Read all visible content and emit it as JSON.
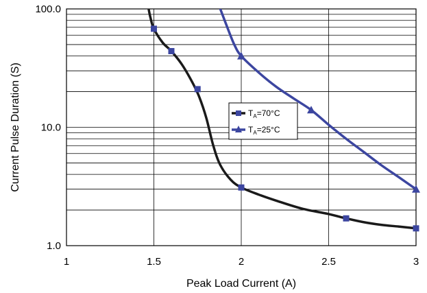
{
  "chart_data": {
    "type": "line",
    "xlabel": "Peak Load Current (A)",
    "ylabel": "Current Pulse Duration (S)",
    "xlim": [
      1,
      3
    ],
    "ylim": [
      1,
      100
    ],
    "y_scale": "log",
    "grid": true,
    "x_ticks": [
      "1",
      "1.5",
      "2",
      "2.5",
      "3"
    ],
    "y_ticks": [
      "1.0",
      "10.0",
      "100.0"
    ],
    "legend_placement": "center-right",
    "series": [
      {
        "name_main": "T",
        "name_sub": "A",
        "name_rest": "=70°C",
        "color": "#1a1a1a",
        "marker_color": "#3c46a0",
        "marker": "square",
        "curve": [
          [
            1.47,
            100
          ],
          [
            1.48,
            85
          ],
          [
            1.5,
            68
          ],
          [
            1.55,
            52
          ],
          [
            1.6,
            44
          ],
          [
            1.66,
            34
          ],
          [
            1.72,
            24
          ],
          [
            1.76,
            18
          ],
          [
            1.8,
            12
          ],
          [
            1.84,
            7
          ],
          [
            1.88,
            4.8
          ],
          [
            1.94,
            3.6
          ],
          [
            2.0,
            3.1
          ],
          [
            2.1,
            2.7
          ],
          [
            2.2,
            2.4
          ],
          [
            2.35,
            2.05
          ],
          [
            2.5,
            1.85
          ],
          [
            2.6,
            1.7
          ],
          [
            2.7,
            1.58
          ],
          [
            2.8,
            1.5
          ],
          [
            2.9,
            1.45
          ],
          [
            3.0,
            1.4
          ]
        ],
        "markers": [
          [
            1.5,
            68
          ],
          [
            1.6,
            44
          ],
          [
            1.75,
            21
          ],
          [
            2.0,
            3.1
          ],
          [
            2.6,
            1.7
          ],
          [
            3.0,
            1.4
          ]
        ]
      },
      {
        "name_main": "T",
        "name_sub": "A",
        "name_rest": "=25°C",
        "color": "#3c46a0",
        "marker_color": "#3c46a0",
        "marker": "triangle",
        "curve": [
          [
            1.88,
            100
          ],
          [
            1.92,
            70
          ],
          [
            1.96,
            50
          ],
          [
            2.0,
            40
          ],
          [
            2.1,
            29
          ],
          [
            2.2,
            22
          ],
          [
            2.3,
            17.5
          ],
          [
            2.4,
            14
          ],
          [
            2.5,
            10.5
          ],
          [
            2.6,
            8
          ],
          [
            2.7,
            6.2
          ],
          [
            2.8,
            4.8
          ],
          [
            2.9,
            3.8
          ],
          [
            3.0,
            3.0
          ]
        ],
        "markers": [
          [
            2.0,
            40
          ],
          [
            2.4,
            14
          ],
          [
            3.0,
            3.0
          ]
        ]
      }
    ]
  }
}
